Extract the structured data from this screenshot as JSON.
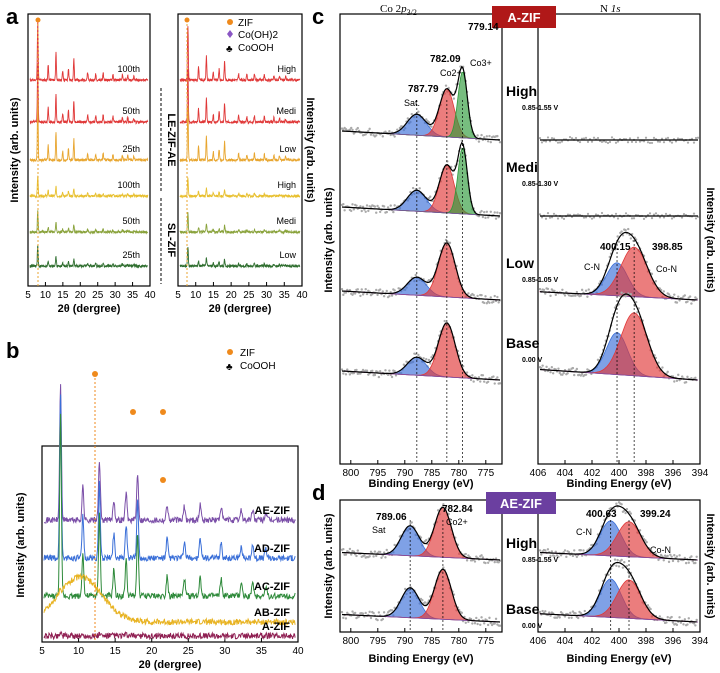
{
  "panels": {
    "a": {
      "letter": "a",
      "xlabel": "2θ (dergree)",
      "ylabel_left": "Intensity (arb. units)",
      "ylabel_right": "Intensity (arb. units)",
      "xticks": [
        "5",
        "10",
        "15",
        "20",
        "25",
        "30",
        "35",
        "40"
      ],
      "left_series": [
        "100th",
        "50th",
        "25th",
        "100th",
        "50th",
        "25th"
      ],
      "right_series": [
        "High",
        "Medi",
        "Low",
        "High",
        "Medi",
        "Low"
      ],
      "group_top": "LE-ZIF-AE",
      "group_bottom": "SL-ZIF",
      "legend": [
        "ZIF",
        "Co(OH)2",
        "CoOOH"
      ]
    },
    "b": {
      "letter": "b",
      "xlabel": "2θ (dergree)",
      "ylabel": "Intensity (arb. units)",
      "xticks": [
        "5",
        "10",
        "15",
        "20",
        "25",
        "30",
        "35",
        "40"
      ],
      "series": [
        "AE-ZIF",
        "AD-ZIF",
        "AC-ZIF",
        "AB-ZIF",
        "A-ZIF"
      ],
      "legend": [
        "ZIF",
        "CoOOH"
      ]
    },
    "c": {
      "letter": "c",
      "title_left": "Co 2p3/2",
      "title_right": "N 1s",
      "badge": "A-ZIF",
      "ylabel_left": "Intensity (arb. units)",
      "ylabel_right": "Intensity (arb. units)",
      "xlabel": "Binding Energy (eV)",
      "xticks_left": [
        "800",
        "795",
        "790",
        "785",
        "780",
        "775"
      ],
      "xticks_right": [
        "406",
        "404",
        "402",
        "400",
        "398",
        "396",
        "394"
      ],
      "states": [
        {
          "name": "High",
          "range": "0.85-1.55 V"
        },
        {
          "name": "Medi",
          "range": "0.85-1.30 V"
        },
        {
          "name": "Low",
          "range": "0.85-1.05 V"
        },
        {
          "name": "Base",
          "range": "0.00 V"
        }
      ],
      "peak_labels": {
        "p1": "779.14",
        "p2": "782.09",
        "p3": "787.79",
        "co2": "Co2+",
        "co3": "Co3+",
        "sat": "Sat.",
        "n1": "400.15",
        "n2": "398.85",
        "cn": "C-N",
        "con": "Co-N"
      }
    },
    "d": {
      "letter": "d",
      "badge": "AE-ZIF",
      "xlabel": "Binding Energy (eV)",
      "ylabel_left": "Intensity (arb. units)",
      "ylabel_right": "Intensity (arb. units)",
      "xticks_left": [
        "800",
        "795",
        "790",
        "785",
        "780",
        "775"
      ],
      "xticks_right": [
        "406",
        "404",
        "402",
        "400",
        "398",
        "396",
        "394"
      ],
      "states": [
        {
          "name": "High",
          "range": "0.85-1.55 V"
        },
        {
          "name": "Base",
          "range": "0.00 V"
        }
      ],
      "peak_labels": {
        "p1": "789.06",
        "p2": "782.84",
        "sat": "Sat",
        "co2": "Co2+",
        "n1": "400.63",
        "n2": "399.24",
        "cn": "C-N",
        "con": "Co-N"
      }
    }
  },
  "colors": {
    "zif": "#ef8a1c",
    "coh": "#8a56c4",
    "cooh": "#d44ec7",
    "red": "#e03838",
    "blue": "#3a6fd8",
    "green": "#2e9a3a",
    "yellow": "#e8b322",
    "darkgreen": "#2f6e2f",
    "purple": "#7b4fa8",
    "maroon": "#8f1f52",
    "badgeA": "#b01818",
    "badgeAE": "#6b3fa0"
  },
  "chart_data": [
    {
      "panel": "a-left",
      "type": "line",
      "x_range": [
        5,
        40
      ],
      "xlabel": "2θ (dergree)",
      "ylabel": "Intensity (arb. units)",
      "series": [
        {
          "name": "100th",
          "group": "LE-ZIF-AE"
        },
        {
          "name": "50th",
          "group": "LE-ZIF-AE"
        },
        {
          "name": "25th",
          "group": "LE-ZIF-AE"
        },
        {
          "name": "100th",
          "group": "SL-ZIF"
        },
        {
          "name": "50th",
          "group": "SL-ZIF"
        },
        {
          "name": "25th",
          "group": "SL-ZIF"
        }
      ],
      "peaks_2theta": [
        7.3,
        10.4,
        12.7,
        14.7,
        16.4,
        18.0,
        22.1,
        24.5,
        26.7,
        29.6,
        32.4,
        34.0,
        35.8
      ]
    },
    {
      "panel": "a-right",
      "type": "line",
      "x_range": [
        5,
        40
      ],
      "xlabel": "2θ (dergree)",
      "ylabel": "Intensity (arb. units)",
      "series": [
        {
          "name": "High"
        },
        {
          "name": "Medi"
        },
        {
          "name": "Low"
        },
        {
          "name": "High"
        },
        {
          "name": "Medi"
        },
        {
          "name": "Low"
        }
      ]
    },
    {
      "panel": "b",
      "type": "line",
      "x_range": [
        5,
        40
      ],
      "xlabel": "2θ (dergree)",
      "ylabel": "Intensity (arb. units)",
      "series": [
        {
          "name": "AE-ZIF"
        },
        {
          "name": "AD-ZIF"
        },
        {
          "name": "AC-ZIF"
        },
        {
          "name": "AB-ZIF"
        },
        {
          "name": "A-ZIF"
        }
      ]
    },
    {
      "panel": "c-Co2p",
      "type": "line",
      "x_range": [
        802,
        772
      ],
      "xlabel": "Binding Energy (eV)",
      "series": [
        {
          "name": "High"
        },
        {
          "name": "Medi"
        },
        {
          "name": "Low"
        },
        {
          "name": "Base"
        }
      ],
      "peaks_eV": [
        779.14,
        782.09,
        787.79
      ]
    },
    {
      "panel": "c-N1s",
      "type": "line",
      "x_range": [
        406,
        394
      ],
      "xlabel": "Binding Energy (eV)",
      "series": [
        {
          "name": "Low"
        },
        {
          "name": "Base"
        }
      ],
      "peaks_eV": [
        400.15,
        398.85
      ]
    },
    {
      "panel": "d-Co2p",
      "type": "line",
      "x_range": [
        802,
        772
      ],
      "xlabel": "Binding Energy (eV)",
      "series": [
        {
          "name": "High"
        },
        {
          "name": "Base"
        }
      ],
      "peaks_eV": [
        789.06,
        782.84
      ]
    },
    {
      "panel": "d-N1s",
      "type": "line",
      "x_range": [
        406,
        394
      ],
      "xlabel": "Binding Energy (eV)",
      "series": [
        {
          "name": "High"
        },
        {
          "name": "Base"
        }
      ],
      "peaks_eV": [
        400.63,
        399.24
      ]
    }
  ]
}
